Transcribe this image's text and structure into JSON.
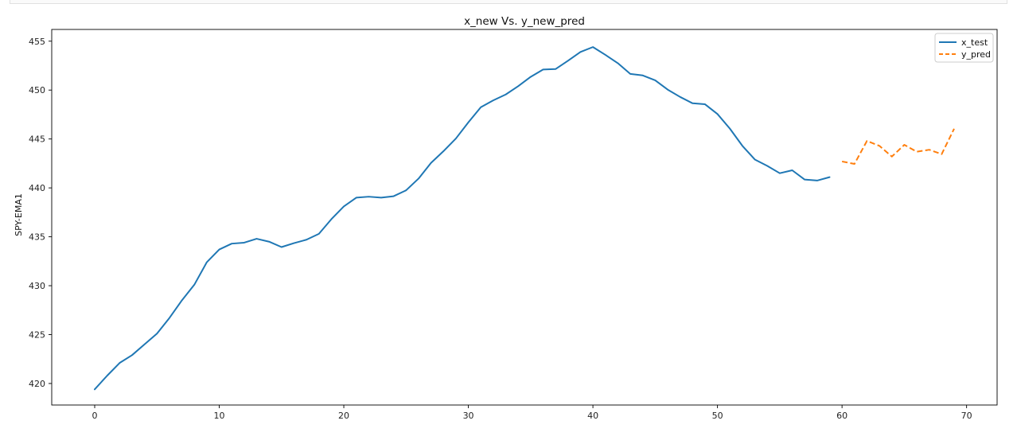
{
  "chart_data": {
    "type": "line",
    "title": "x_new Vs. y_new_pred",
    "xlabel": "",
    "ylabel": "SPY-EMA1",
    "xlim": [
      -3.45,
      72.45
    ],
    "ylim": [
      417.8,
      456.2
    ],
    "xticks": [
      0,
      10,
      20,
      30,
      40,
      50,
      60,
      70
    ],
    "yticks": [
      420,
      425,
      430,
      435,
      440,
      445,
      450,
      455
    ],
    "grid": false,
    "legend_position": "upper right",
    "series": [
      {
        "name": "x_test",
        "color": "#1f77b4",
        "style": "solid",
        "x": [
          0,
          1,
          2,
          3,
          4,
          5,
          6,
          7,
          8,
          9,
          10,
          11,
          12,
          13,
          14,
          15,
          16,
          17,
          18,
          19,
          20,
          21,
          22,
          23,
          24,
          25,
          26,
          27,
          28,
          29,
          30,
          31,
          32,
          33,
          34,
          35,
          36,
          37,
          38,
          39,
          40,
          41,
          42,
          43,
          44,
          45,
          46,
          47,
          48,
          49,
          50,
          51,
          52,
          53,
          54,
          55,
          56,
          57,
          58,
          59
        ],
        "y": [
          419.4,
          420.8,
          422.1,
          422.9,
          424.0,
          425.1,
          426.7,
          428.5,
          430.1,
          432.4,
          433.7,
          434.3,
          434.4,
          434.8,
          434.5,
          433.95,
          434.35,
          434.7,
          435.3,
          436.8,
          438.1,
          439.0,
          439.1,
          439.0,
          439.15,
          439.75,
          440.95,
          442.55,
          443.75,
          445.05,
          446.7,
          448.25,
          448.95,
          449.55,
          450.4,
          451.35,
          452.1,
          452.15,
          453.0,
          453.9,
          454.4,
          453.6,
          452.75,
          451.65,
          451.5,
          451.0,
          450.05,
          449.3,
          448.65,
          448.55,
          447.55,
          446.05,
          444.3,
          442.9,
          442.25,
          441.5,
          441.8,
          440.85,
          440.75,
          441.1
        ]
      },
      {
        "name": "y_pred",
        "color": "#ff7f0e",
        "style": "dashed",
        "x": [
          60,
          61,
          62,
          63,
          64,
          65,
          66,
          67,
          68,
          69
        ],
        "y": [
          442.7,
          442.45,
          444.8,
          444.3,
          443.2,
          444.4,
          443.7,
          443.9,
          443.45,
          446.05
        ]
      }
    ]
  }
}
